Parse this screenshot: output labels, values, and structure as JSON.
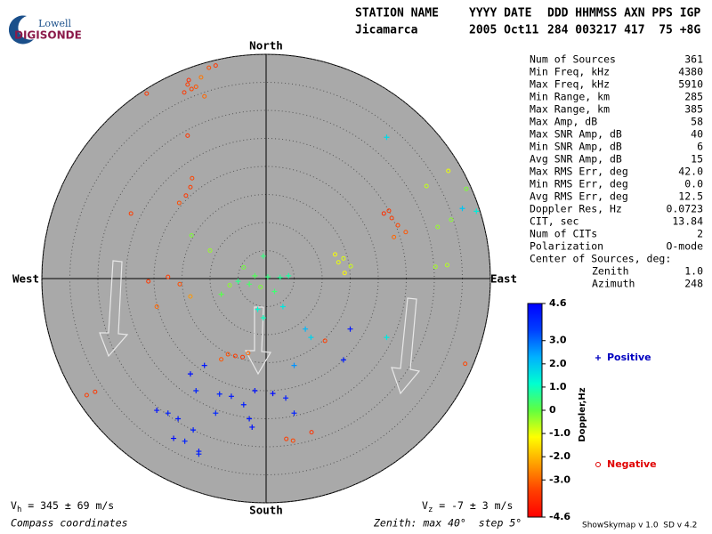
{
  "chart_data": {
    "type": "scatter",
    "logo": {
      "top": "Lowell",
      "bottom": "DIGISONDE"
    },
    "header": {
      "labels": [
        "STATION NAME",
        "YYYY DATE",
        "DDD HHMMSS AXN PPS IGP"
      ],
      "values": [
        "Jicamarca",
        "2005 Oct11",
        "284 003217 417  75 +8G"
      ]
    },
    "directions": {
      "north": "North",
      "south": "South",
      "west": "West",
      "east": "East"
    },
    "xlim": [
      -40,
      40
    ],
    "ylim": [
      -40,
      40
    ],
    "rticks": [
      5,
      10,
      15,
      20,
      25,
      30,
      35,
      40
    ],
    "points": [
      [
        -14,
        34.6,
        -3.5
      ],
      [
        -13.3,
        33.8,
        -3.4
      ],
      [
        -14.6,
        33.2,
        -3.6
      ],
      [
        -12.5,
        34.2,
        -3.2
      ],
      [
        -13.8,
        35.4,
        -3.8
      ],
      [
        -11.6,
        35.9,
        -2.8
      ],
      [
        -10.2,
        37.6,
        -3.3
      ],
      [
        -9.0,
        38.0,
        -3.6
      ],
      [
        -11.0,
        32.5,
        -3.0
      ],
      [
        -21.3,
        33.0,
        -3.6
      ],
      [
        -13.5,
        16.3,
        -3.5
      ],
      [
        -13.2,
        17.9,
        -3.4
      ],
      [
        -14.3,
        14.8,
        -3.6
      ],
      [
        -15.5,
        13.5,
        -3.3
      ],
      [
        -14.0,
        25.5,
        -3.6
      ],
      [
        -24.1,
        11.6,
        -3.5
      ],
      [
        -17.5,
        0.3,
        -3.5
      ],
      [
        -15.4,
        -1.0,
        -3.3
      ],
      [
        -21.0,
        -0.5,
        -3.6
      ],
      [
        -19.5,
        -5.0,
        -3.0
      ],
      [
        -13.5,
        -3.2,
        -2.4
      ],
      [
        -30.5,
        -20.2,
        -3.6
      ],
      [
        -32.0,
        -20.8,
        -3.5
      ],
      [
        22.4,
        10.8,
        -3.5
      ],
      [
        21.9,
        12.1,
        -3.6
      ],
      [
        23.5,
        9.5,
        -3.4
      ],
      [
        24.9,
        8.3,
        -3.2
      ],
      [
        21.0,
        11.6,
        -3.8
      ],
      [
        22.8,
        7.4,
        -3.0
      ],
      [
        12.9,
        2.9,
        -1.0
      ],
      [
        13.8,
        3.6,
        -0.9
      ],
      [
        15.1,
        2.2,
        -0.8
      ],
      [
        14.0,
        1.0,
        -1.2
      ],
      [
        12.3,
        4.3,
        -1.1
      ],
      [
        30.2,
        2.1,
        -0.5
      ],
      [
        32.3,
        2.4,
        -0.6
      ],
      [
        30.6,
        9.2,
        -0.4
      ],
      [
        28.6,
        16.5,
        -0.7
      ],
      [
        33.0,
        10.5,
        -0.3
      ],
      [
        35.7,
        16.0,
        -0.2
      ],
      [
        32.5,
        19.2,
        -1.0
      ],
      [
        -3.0,
        -1.0,
        0.3
      ],
      [
        -5.0,
        -0.5,
        0.6
      ],
      [
        -1.0,
        -1.5,
        -0.2
      ],
      [
        0.3,
        0.3,
        0.5
      ],
      [
        -6.5,
        -1.2,
        -0.3
      ],
      [
        -2.0,
        0.5,
        0.2
      ],
      [
        -8.0,
        -2.8,
        0.1
      ],
      [
        1.5,
        -2.3,
        0.4
      ],
      [
        -4.0,
        2.0,
        -0.1
      ],
      [
        2.5,
        0.2,
        0.7
      ],
      [
        -13.3,
        7.7,
        -0.2
      ],
      [
        -10.0,
        5.0,
        -0.4
      ],
      [
        4.0,
        0.5,
        0.8
      ],
      [
        -0.5,
        4.0,
        0.5
      ],
      [
        3.0,
        -5.0,
        1.5
      ],
      [
        -1.5,
        -5.5,
        1.2
      ],
      [
        -5.5,
        -13.8,
        -3.5
      ],
      [
        -6.8,
        -13.5,
        -3.3
      ],
      [
        -4.2,
        -14.0,
        -3.6
      ],
      [
        -3.2,
        -13.3,
        -3.0
      ],
      [
        -8.0,
        -14.4,
        -3.2
      ],
      [
        3.6,
        -28.6,
        -3.5
      ],
      [
        4.8,
        -28.9,
        -3.4
      ],
      [
        8.1,
        -27.4,
        -3.7
      ],
      [
        10.5,
        -11.1,
        -3.5
      ],
      [
        35.5,
        -15.2,
        -3.4
      ],
      [
        -15.7,
        -25,
        4.2
      ],
      [
        -17.5,
        -24,
        4.0
      ],
      [
        -13.0,
        -27,
        4.1
      ],
      [
        -19.5,
        -23.5,
        4.3
      ],
      [
        -14.5,
        -29,
        4.0
      ],
      [
        -12.0,
        -30.8,
        4.2
      ],
      [
        -16.5,
        -28.5,
        4.4
      ],
      [
        -9.0,
        -24,
        3.9
      ],
      [
        -6.2,
        -21,
        4.2
      ],
      [
        -8.3,
        -20.6,
        4.0
      ],
      [
        -4.0,
        -22.5,
        4.1
      ],
      [
        -2.0,
        -20,
        4.3
      ],
      [
        -12.5,
        -20,
        4.0
      ],
      [
        -11.0,
        -15.5,
        4.2
      ],
      [
        -13.5,
        -17.0,
        4.3
      ],
      [
        1.2,
        -20.5,
        4.4
      ],
      [
        3.5,
        -21.3,
        4.1
      ],
      [
        5.0,
        -24,
        4.0
      ],
      [
        -3.0,
        -25,
        4.2
      ],
      [
        -2.5,
        -26.5,
        4.3
      ],
      [
        15.0,
        -9.0,
        4.2
      ],
      [
        13.8,
        -14.5,
        4.1
      ],
      [
        -12.0,
        -31.3,
        4.0
      ],
      [
        7.0,
        -9.0,
        2.2
      ],
      [
        8.0,
        -10.5,
        1.8
      ],
      [
        21.5,
        -10.5,
        1.5
      ],
      [
        5.0,
        -15.5,
        2.6
      ],
      [
        21.5,
        25.2,
        1.7
      ],
      [
        35.0,
        12.5,
        2.0
      ],
      [
        37.5,
        12.0,
        1.4
      ],
      [
        -0.5,
        -7.0,
        1.0
      ]
    ],
    "stats": [
      [
        "Num of Sources",
        "361"
      ],
      [
        "Min Freq, kHz",
        "4380"
      ],
      [
        "Max Freq, kHz",
        "5910"
      ],
      [
        "Min Range, km",
        "285"
      ],
      [
        "Max Range, km",
        "385"
      ],
      [
        "Max Amp, dB",
        "58"
      ],
      [
        "Max SNR Amp, dB",
        "40"
      ],
      [
        "Min SNR Amp, dB",
        "6"
      ],
      [
        "Avg SNR Amp, dB",
        "15"
      ],
      [
        "Max RMS Err, deg",
        "42.0"
      ],
      [
        "Min RMS Err, deg",
        "0.0"
      ],
      [
        "Avg RMS Err, deg",
        "12.5"
      ],
      [
        "Doppler Res, Hz",
        "0.0723"
      ],
      [
        "CIT, sec",
        "13.84"
      ],
      [
        "Num of CITs",
        "2"
      ],
      [
        "Polarization",
        "O-mode"
      ]
    ],
    "center_title": "Center of Sources, deg:",
    "center": [
      [
        "Zenith",
        "1.0"
      ],
      [
        "Azimuth",
        "248"
      ]
    ],
    "colorbar": {
      "label": "Doppler,Hz",
      "lim": [
        -4.6,
        4.6
      ],
      "ticks": [
        4.6,
        {
          "value": 3,
          "label": "3.0"
        },
        {
          "value": 2,
          "label": "2.0"
        },
        {
          "value": 1,
          "label": "1.0"
        },
        0,
        {
          "value": -1,
          "label": "-1.0"
        },
        {
          "value": -2,
          "label": "-2.0"
        },
        {
          "value": -3,
          "label": "-3.0"
        },
        -4.6
      ],
      "colormap": [
        "#0000ff",
        "#0040ff",
        "#00b0ff",
        "#00ffd0",
        "#60ff40",
        "#ffff00",
        "#ffa000",
        "#ff4000",
        "#ff0000"
      ]
    },
    "legend": {
      "positive": "Positive",
      "negative": "Negative",
      "positive_color": "#0000c0",
      "negative_color": "#e00000"
    },
    "vh": {
      "symbol": "V",
      "sub": "h",
      "text": " = 345 ± 69 m/s"
    },
    "vz": {
      "symbol": "V",
      "sub": "z",
      "text": " = -7 ± 3 m/s"
    },
    "coords": "Compass coordinates",
    "zenith_note": "Zenith: max 40°  step 5°",
    "version": "ShowSkymap v 1.0  SD v 4.2"
  }
}
